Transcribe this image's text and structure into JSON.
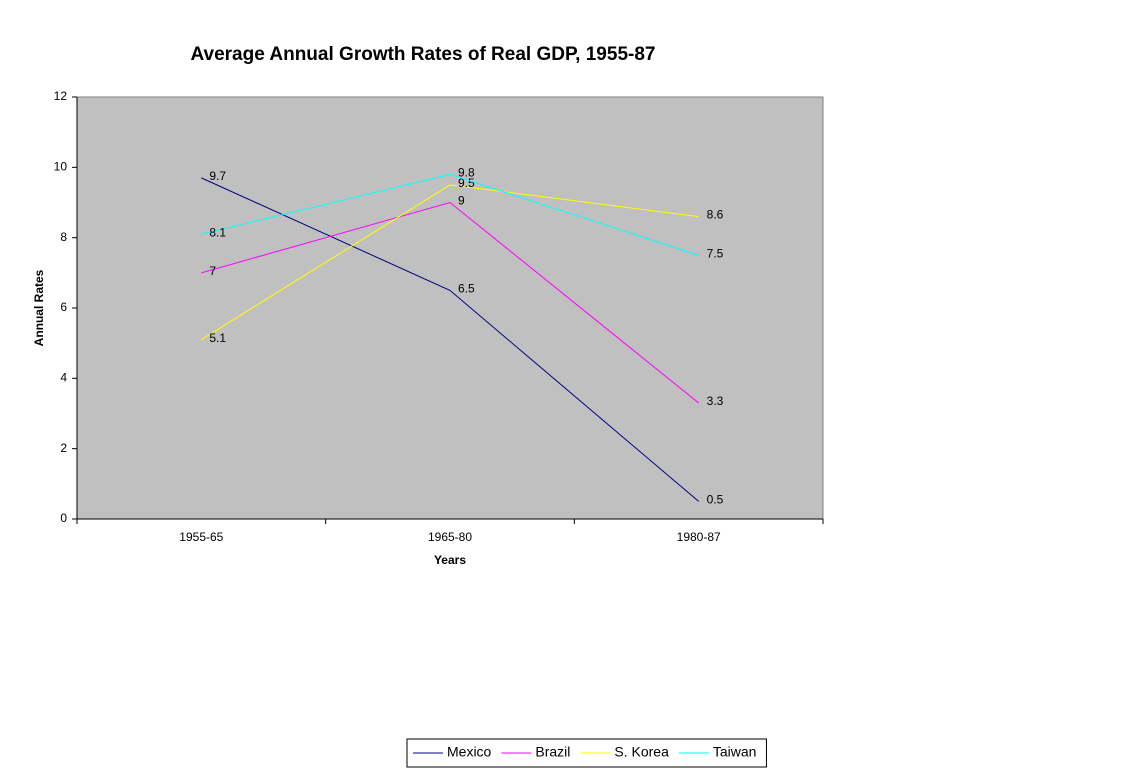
{
  "chart_data": {
    "type": "line",
    "title": "Average Annual Growth Rates of Real GDP, 1955-87",
    "x_label": "Years",
    "y_label": "Annual Rates",
    "categories": [
      "1955-65",
      "1965-80",
      "1980-87"
    ],
    "series": [
      {
        "name": "Mexico",
        "color": "#000080",
        "values": [
          9.7,
          6.5,
          0.5
        ]
      },
      {
        "name": "Brazil",
        "color": "#ff00ff",
        "values": [
          7,
          9,
          3.3
        ]
      },
      {
        "name": "S. Korea",
        "color": "#ffff00",
        "values": [
          5.1,
          9.5,
          8.6
        ]
      },
      {
        "name": "Taiwan",
        "color": "#00ffff",
        "values": [
          8.1,
          9.8,
          7.5
        ]
      }
    ],
    "ylim": [
      0,
      12
    ],
    "yticks": [
      0,
      2,
      4,
      6,
      8,
      10,
      12
    ],
    "grid": false,
    "legend": "bottom",
    "plot_background": "#c0c0c0"
  }
}
